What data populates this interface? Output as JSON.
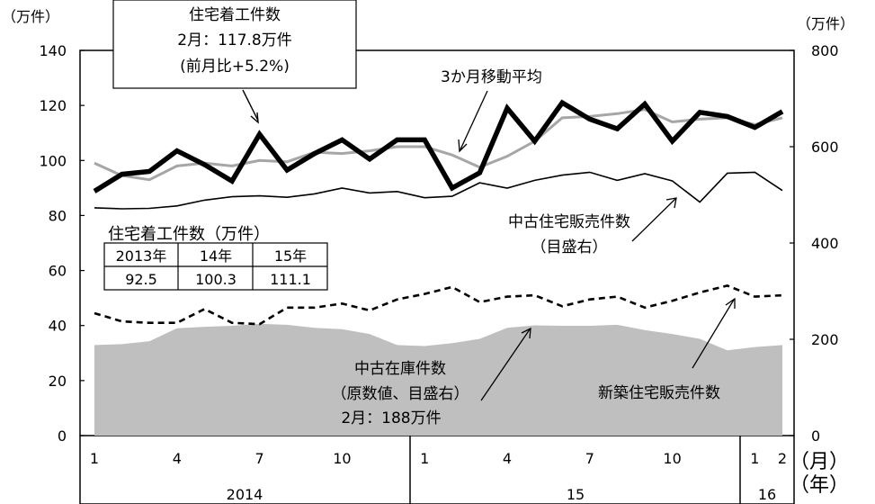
{
  "chart_data": {
    "type": "line",
    "left_axis": {
      "unit": "（万件）",
      "ylim": [
        0,
        140
      ],
      "ticks": [
        0,
        20,
        40,
        60,
        80,
        100,
        120,
        140
      ]
    },
    "right_axis": {
      "unit": "（万件）",
      "ylim": [
        0,
        800
      ],
      "ticks": [
        0,
        200,
        400,
        600,
        800
      ]
    },
    "x_tick_labels": [
      "1",
      "4",
      "7",
      "10",
      "1",
      "4",
      "7",
      "10",
      "1",
      "2"
    ],
    "x_month_unit": "（月）",
    "years": [
      "2014",
      "15",
      "16"
    ],
    "x_year_unit": "（年）",
    "x": [
      "2014-01",
      "2014-02",
      "2014-03",
      "2014-04",
      "2014-05",
      "2014-06",
      "2014-07",
      "2014-08",
      "2014-09",
      "2014-10",
      "2014-11",
      "2014-12",
      "2015-01",
      "2015-02",
      "2015-03",
      "2015-04",
      "2015-05",
      "2015-06",
      "2015-07",
      "2015-08",
      "2015-09",
      "2015-10",
      "2015-11",
      "2015-12",
      "2016-01",
      "2016-02"
    ],
    "series": [
      {
        "name": "住宅着工件数",
        "axis": "left",
        "style": "thick-black",
        "values": [
          88.8,
          95.0,
          96.0,
          103.5,
          98.5,
          92.5,
          109.5,
          96.5,
          102.5,
          107.5,
          100.5,
          107.5,
          107.5,
          90.0,
          95.5,
          119.0,
          107.0,
          121.0,
          115.0,
          111.5,
          120.5,
          107.0,
          117.5,
          116.0,
          112.0,
          117.8
        ]
      },
      {
        "name": "3か月移動平均",
        "axis": "left",
        "style": "gray",
        "values": [
          99.0,
          94.5,
          93.0,
          98.0,
          99.0,
          98.0,
          100.0,
          99.5,
          103.0,
          102.5,
          103.5,
          105.0,
          105.0,
          102.0,
          97.5,
          101.5,
          107.0,
          115.5,
          116.0,
          117.0,
          118.5,
          114.0,
          115.0,
          115.5,
          113.0,
          115.5
        ]
      },
      {
        "name": "中古住宅販売件数",
        "axis": "right",
        "style": "thin-black",
        "values": [
          473,
          471,
          472,
          477,
          489,
          496,
          498,
          495,
          502,
          514,
          504,
          507,
          494,
          497,
          525,
          514,
          530,
          541,
          547,
          530,
          544,
          529,
          485,
          545,
          547,
          509
        ]
      },
      {
        "name": "新築住宅販売件数",
        "axis": "left",
        "style": "dashed",
        "values": [
          44.5,
          41.5,
          41.0,
          41.0,
          46.0,
          41.0,
          40.5,
          46.5,
          46.5,
          48.0,
          45.5,
          49.5,
          51.5,
          54.0,
          48.5,
          50.5,
          51.0,
          47.0,
          49.5,
          50.5,
          46.5,
          49.0,
          52.0,
          54.5,
          50.5,
          51.0
        ]
      },
      {
        "name": "中古在庫件数",
        "axis": "right",
        "style": "gray-area",
        "values": [
          188,
          190,
          196,
          223,
          226,
          228,
          232,
          230,
          224,
          221,
          211,
          188,
          186,
          192,
          201,
          224,
          229,
          228,
          228,
          230,
          219,
          211,
          201,
          177,
          184,
          188
        ]
      }
    ],
    "annotations": {
      "starts": {
        "line1": "住宅着工件数",
        "line2": "2月：117.8万件",
        "line3": "(前月比+5.2%)"
      },
      "mavg": "3か月移動平均",
      "used_sales": {
        "line1": "中古住宅販売件数",
        "line2": "（目盛右）"
      },
      "inventory": {
        "line1": "中古在庫件数",
        "line2": "（原数値、目盛右）",
        "line3": "2月：188万件"
      },
      "new_sales": "新築住宅販売件数"
    },
    "inset_table": {
      "title": "住宅着工件数（万件）",
      "headers": [
        "2013年",
        "14年",
        "15年"
      ],
      "values": [
        "92.5",
        "100.3",
        "111.1"
      ]
    }
  }
}
